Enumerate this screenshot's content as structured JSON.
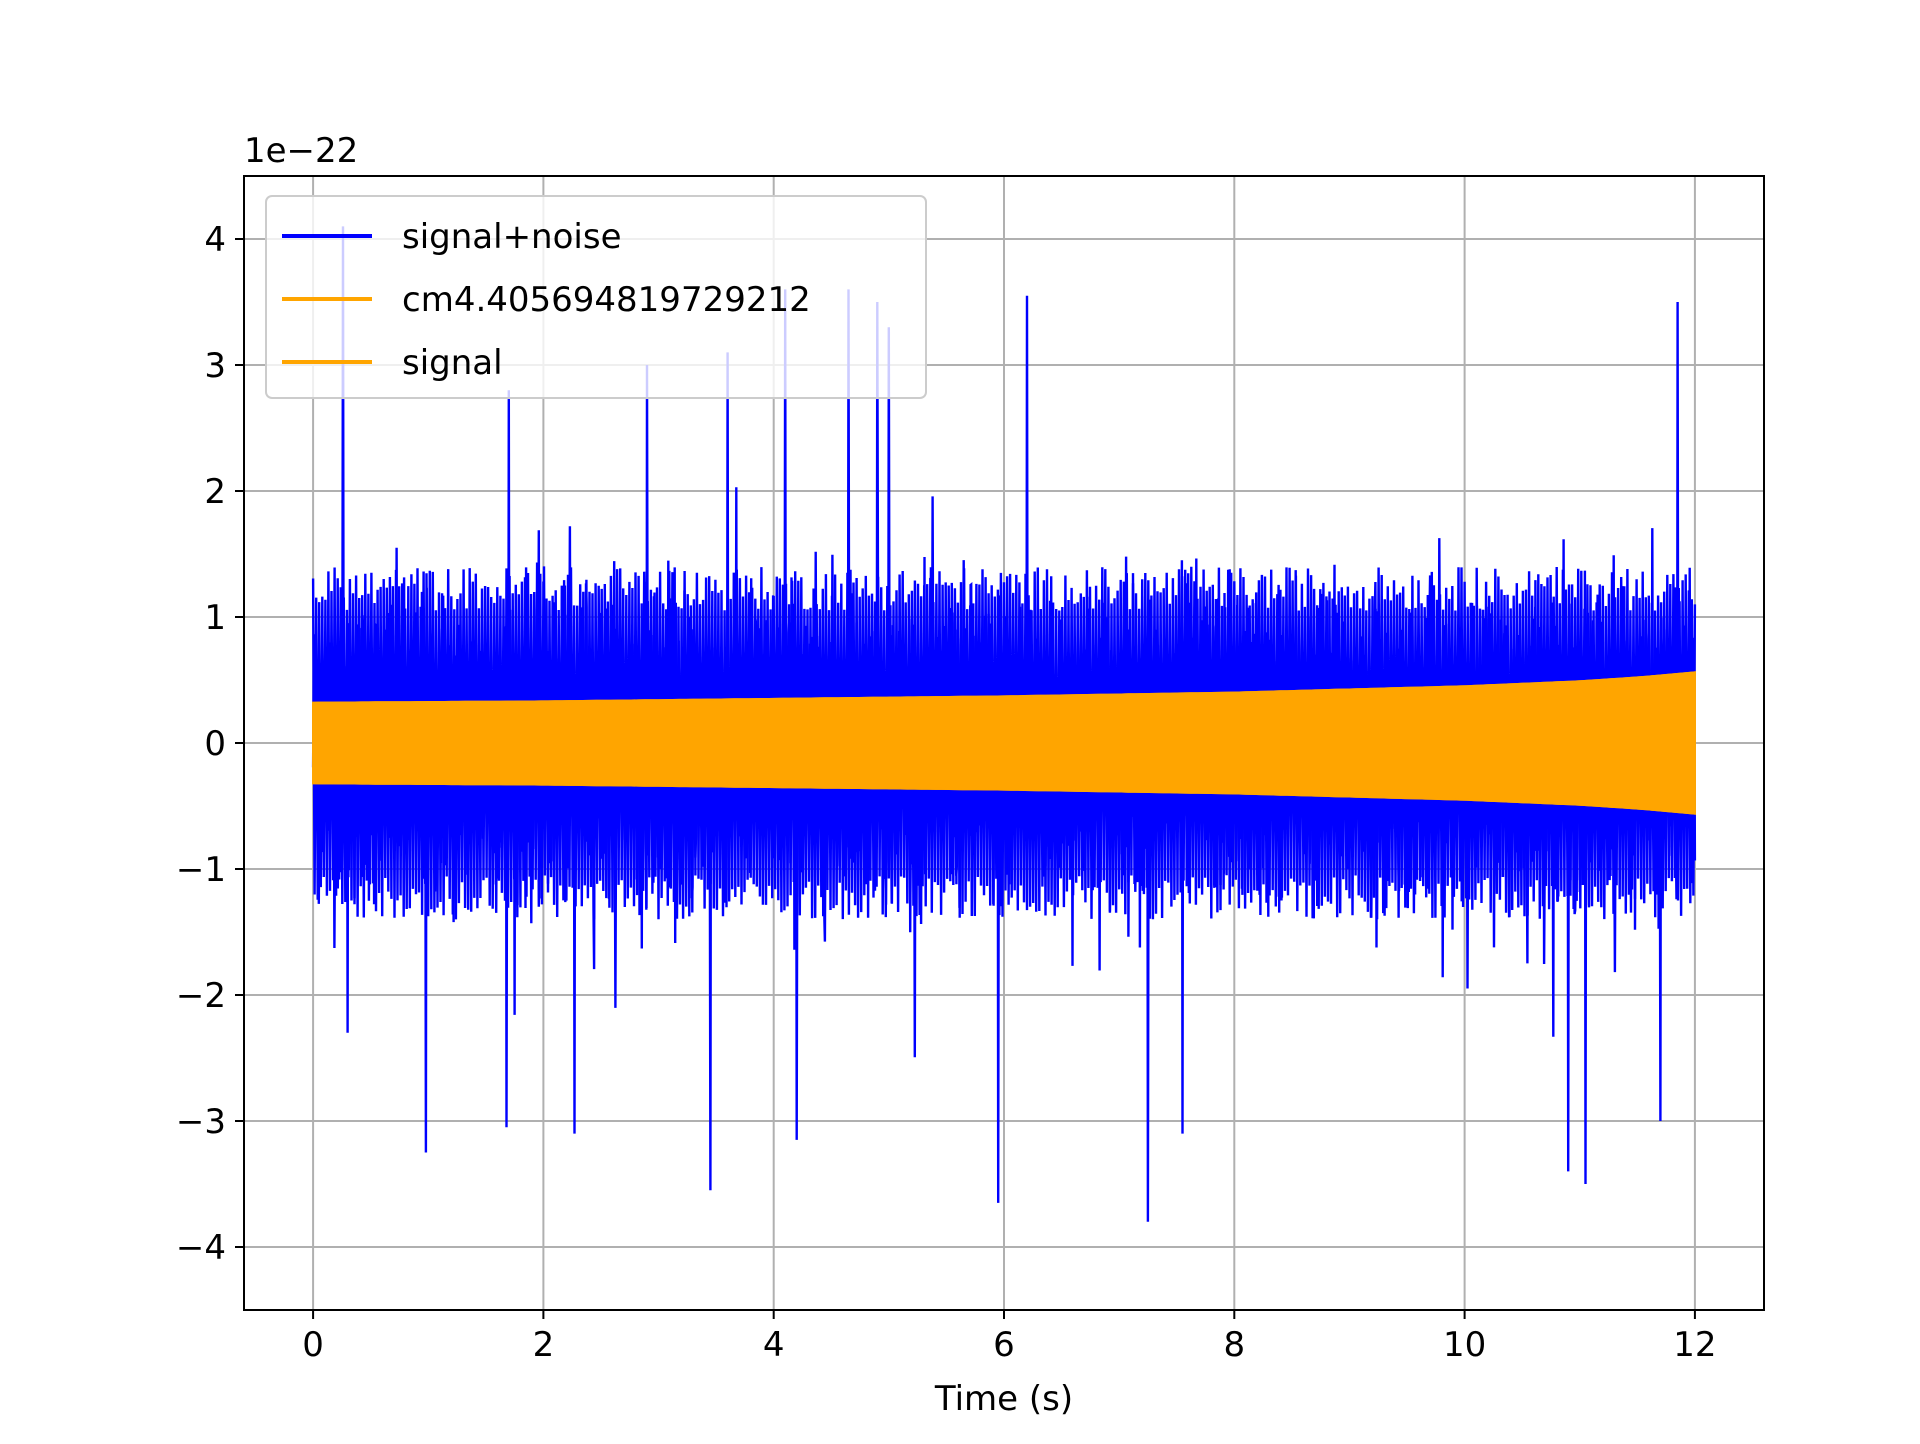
{
  "chart_data": {
    "type": "line",
    "title": "",
    "xlabel": "Time (s)",
    "ylabel": "",
    "y_offset_label": "1e−22",
    "y_scale_exponent": -22,
    "xlim": [
      -0.6,
      12.6
    ],
    "ylim": [
      -4.5,
      4.5
    ],
    "x_ticks": [
      0,
      2,
      4,
      6,
      8,
      10,
      12
    ],
    "x_tick_labels": [
      "0",
      "2",
      "4",
      "6",
      "8",
      "10",
      "12"
    ],
    "y_ticks": [
      -4,
      -3,
      -2,
      -1,
      0,
      1,
      2,
      3,
      4
    ],
    "y_tick_labels": [
      "−4",
      "−3",
      "−2",
      "−1",
      "0",
      "1",
      "2",
      "3",
      "4"
    ],
    "grid": true,
    "legend_position": "top-left",
    "series": [
      {
        "name": "signal+noise",
        "color": "#0000ff",
        "description": "noise-dominated strain, roughly uniform envelope",
        "t_start": 0,
        "t_end": 12,
        "typical_amplitude": 1.6,
        "peak_max": 4.1,
        "peak_min": -3.8
      },
      {
        "name": "cm4.405694819729212",
        "color": "#ffa500",
        "envelope_t": [
          0,
          2,
          4,
          6,
          8,
          10,
          11,
          11.5,
          12
        ],
        "envelope_amplitude": [
          0.32,
          0.33,
          0.35,
          0.37,
          0.4,
          0.45,
          0.49,
          0.52,
          0.56
        ]
      },
      {
        "name": "signal",
        "color": "#ffa500",
        "envelope_t": [
          0,
          2,
          4,
          6,
          8,
          10,
          11,
          11.5,
          12
        ],
        "envelope_amplitude": [
          0.32,
          0.33,
          0.35,
          0.37,
          0.4,
          0.45,
          0.49,
          0.52,
          0.56
        ]
      }
    ],
    "spikes": [
      {
        "t": 0.26,
        "v": 4.1
      },
      {
        "t": 0.3,
        "v": -2.3
      },
      {
        "t": 0.98,
        "v": -3.25
      },
      {
        "t": 1.68,
        "v": -3.05
      },
      {
        "t": 2.27,
        "v": -3.1
      },
      {
        "t": 3.45,
        "v": -3.55
      },
      {
        "t": 3.6,
        "v": 3.1
      },
      {
        "t": 4.1,
        "v": 3.6
      },
      {
        "t": 4.2,
        "v": -3.15
      },
      {
        "t": 4.65,
        "v": 3.6
      },
      {
        "t": 4.9,
        "v": 3.5
      },
      {
        "t": 5.0,
        "v": 3.3
      },
      {
        "t": 5.95,
        "v": -3.65
      },
      {
        "t": 6.2,
        "v": 3.55
      },
      {
        "t": 7.25,
        "v": -3.8
      },
      {
        "t": 7.55,
        "v": -3.1
      },
      {
        "t": 10.9,
        "v": -3.4
      },
      {
        "t": 11.05,
        "v": -3.5
      },
      {
        "t": 11.85,
        "v": 3.5
      },
      {
        "t": 11.7,
        "v": -3.0
      },
      {
        "t": 2.9,
        "v": 3.0
      },
      {
        "t": 1.7,
        "v": 2.8
      }
    ]
  }
}
